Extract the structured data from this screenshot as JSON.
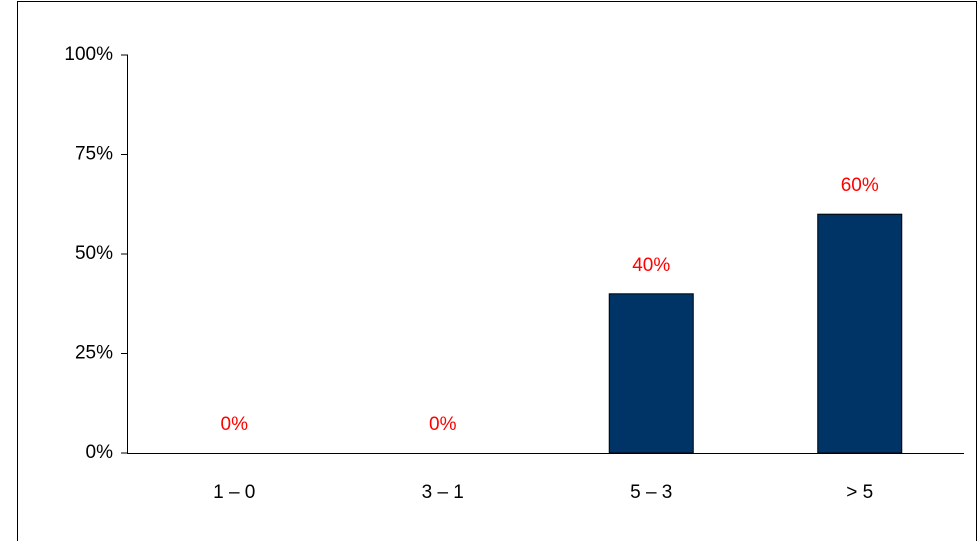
{
  "chart_data": {
    "type": "bar",
    "categories": [
      "1 – 0",
      "3 – 1",
      "5 – 3",
      "> 5"
    ],
    "values": [
      0,
      0,
      40,
      60
    ],
    "value_labels": [
      "0%",
      "0%",
      "40%",
      "60%"
    ],
    "color": "#003366",
    "label_color": "#ff0000",
    "ylim": [
      0,
      100
    ],
    "yticks": [
      {
        "value": 0,
        "label": "0%"
      },
      {
        "value": 25,
        "label": "25%"
      },
      {
        "value": 50,
        "label": "50%"
      },
      {
        "value": 75,
        "label": "75%"
      },
      {
        "value": 100,
        "label": "100%"
      }
    ],
    "grid": false
  }
}
